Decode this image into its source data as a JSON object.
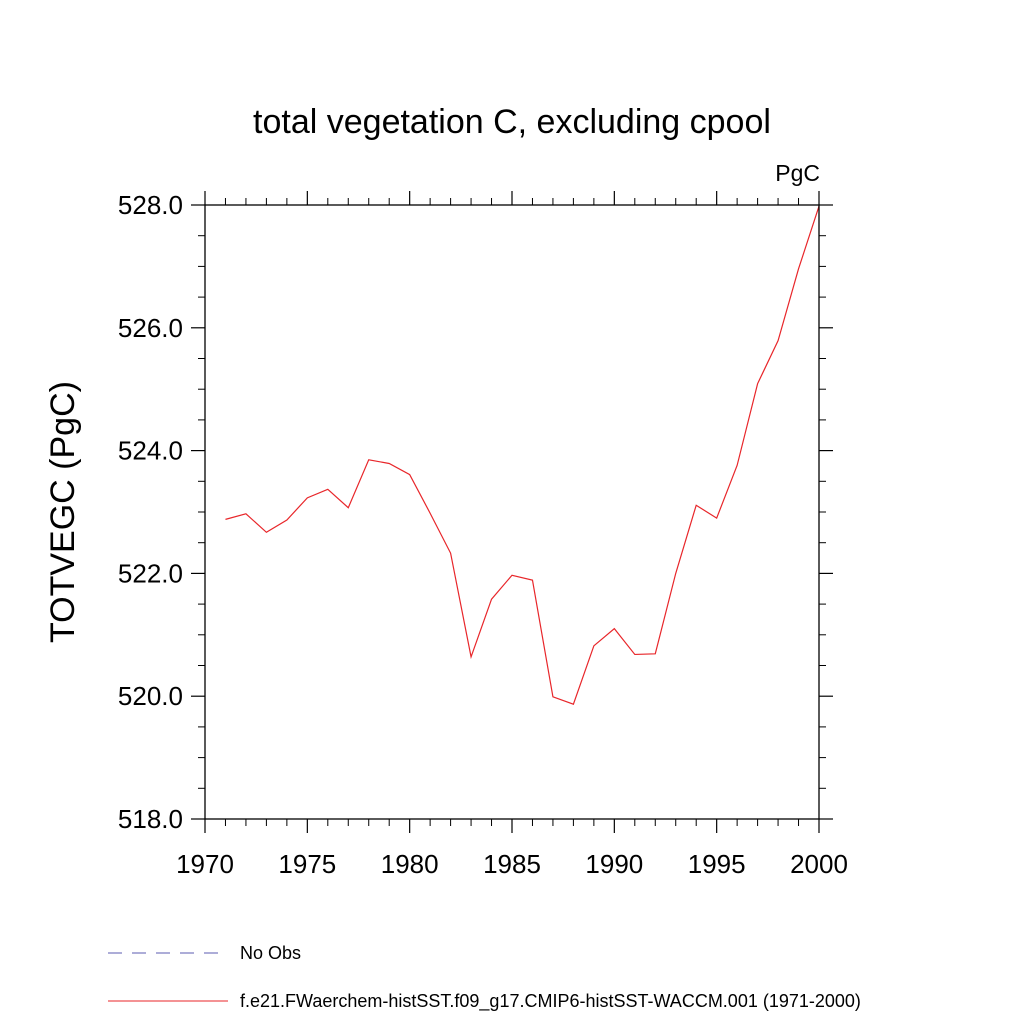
{
  "chart_data": {
    "type": "line",
    "title": "total vegetation C, excluding cpool",
    "units": "PgC",
    "ylabel": "TOTVEGC  (PgC)",
    "xlabel": "",
    "xlim": [
      1970,
      2000
    ],
    "ylim": [
      518,
      528
    ],
    "x_ticks": [
      1970,
      1975,
      1980,
      1985,
      1990,
      1995,
      2000
    ],
    "x_tick_labels": [
      "1970",
      "1975",
      "1980",
      "1985",
      "1990",
      "1995",
      "2000"
    ],
    "y_ticks": [
      518,
      520,
      522,
      524,
      526,
      528
    ],
    "y_tick_labels": [
      "518.0",
      "520.0",
      "522.0",
      "524.0",
      "526.0",
      "528.0"
    ],
    "grid": false,
    "legend_position": "bottom",
    "legend": [
      {
        "label": "No Obs",
        "color": "#5b5bb0",
        "style": "dashed"
      },
      {
        "label": "f.e21.FWaerchem-histSST.f09_g17.CMIP6-histSST-WACCM.001 (1971-2000)",
        "color": "#e8262a",
        "style": "solid"
      }
    ],
    "series": [
      {
        "color": "#e8262a",
        "x": [
          1971,
          1972,
          1973,
          1974,
          1975,
          1976,
          1977,
          1978,
          1979,
          1980,
          1981,
          1982,
          1983,
          1984,
          1985,
          1986,
          1987,
          1988,
          1989,
          1990,
          1991,
          1992,
          1993,
          1994,
          1995,
          1996,
          1997,
          1998,
          1999,
          2000
        ],
        "values": [
          522.88,
          522.97,
          522.67,
          522.87,
          523.23,
          523.37,
          523.07,
          523.85,
          523.79,
          523.61,
          522.98,
          522.33,
          520.64,
          521.58,
          521.97,
          521.89,
          519.99,
          519.87,
          520.82,
          521.1,
          520.68,
          520.69,
          522.0,
          523.11,
          522.9,
          523.76,
          525.09,
          525.79,
          526.96,
          527.98
        ]
      }
    ]
  }
}
